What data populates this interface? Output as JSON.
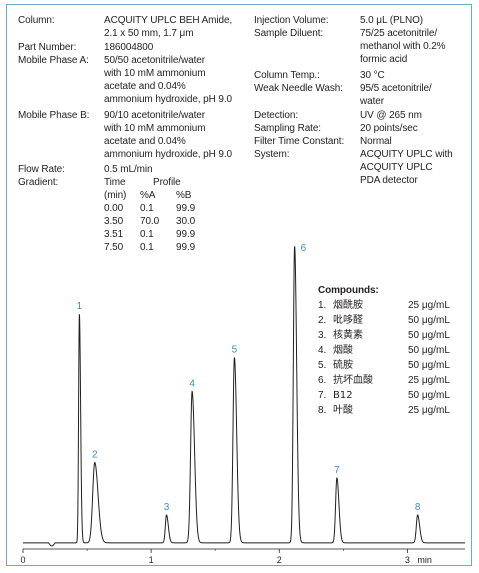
{
  "method": {
    "column_label": "Column:",
    "column_value": [
      "ACQUITY UPLC BEH Amide,",
      "2.1 x 50 mm, 1.7 μm"
    ],
    "part_label": "Part Number:",
    "part_value": "186004800",
    "phase_a_label": "Mobile Phase A:",
    "phase_a_value": [
      "50/50 acetonitrile/water",
      "with 10 mM ammonium",
      "acetate and 0.04%",
      "ammonium hydroxide, pH 9.0"
    ],
    "phase_b_label": "Mobile Phase B:",
    "phase_b_value": [
      "90/10 acetonitrile/water",
      "with 10 mM ammonium",
      "acetate and 0.04%",
      "ammonium hydroxide, pH 9.0"
    ],
    "flow_label": "Flow Rate:",
    "flow_value": "0.5 mL/min",
    "gradient_label": "Gradient:",
    "injection_label": "Injection Volume:",
    "injection_value": "5.0 μL (PLNO)",
    "diluent_label": "Sample Diluent:",
    "diluent_value": [
      "75/25 acetonitrile/",
      "methanol with 0.2%",
      "formic acid"
    ],
    "temp_label": "Column Temp.:",
    "temp_value": "30 °C",
    "wash_label": "Weak Needle Wash:",
    "wash_value": [
      "95/5 acetonitrile/",
      "water"
    ],
    "detection_label": "Detection:",
    "detection_value": "UV @ 265 nm",
    "sampling_label": "Sampling Rate:",
    "sampling_value": "20 points/sec",
    "filter_label": "Filter Time Constant:",
    "filter_value": "Normal",
    "system_label": "System:",
    "system_value": [
      "ACQUITY UPLC with",
      "ACQUITY UPLC",
      "PDA detector"
    ]
  },
  "gradient_table": {
    "header_time": [
      "Time",
      "(min)"
    ],
    "header_profile": "Profile",
    "header_a": "%A",
    "header_b": "%B",
    "rows": [
      [
        "0.00",
        "0.1",
        "99.9"
      ],
      [
        "3.50",
        "70.0",
        "30.0"
      ],
      [
        "3.51",
        "0.1",
        "99.9"
      ],
      [
        "7.50",
        "0.1",
        "99.9"
      ]
    ]
  },
  "compounds": {
    "title": "Compounds:",
    "items": [
      {
        "num": "1.",
        "name": "烟酰胺",
        "conc": "25 μg/mL"
      },
      {
        "num": "2.",
        "name": "吡哆醛",
        "conc": "50 μg/mL"
      },
      {
        "num": "3.",
        "name": "核黄素",
        "conc": "50 μg/mL"
      },
      {
        "num": "4.",
        "name": "烟酸",
        "conc": "50 μg/mL"
      },
      {
        "num": "5.",
        "name": "硫胺",
        "conc": "50 μg/mL"
      },
      {
        "num": "6.",
        "name": "抗坏血酸",
        "conc": "25 μg/mL"
      },
      {
        "num": "7.",
        "name": "B12",
        "conc": "50 μg/mL"
      },
      {
        "num": "8.",
        "name": "叶酸",
        "conc": "25 μg/mL"
      }
    ]
  },
  "chart_data": {
    "type": "line",
    "xlabel": "min",
    "xlim": [
      0,
      3.45
    ],
    "ylim": [
      0,
      1.0
    ],
    "x_ticks": [
      "0",
      "1",
      "2",
      "3"
    ],
    "line_color": "#231f20",
    "label_color": "#3b8dc0",
    "baseline": 0.02,
    "peaks": [
      {
        "label": "1",
        "rt": 0.44,
        "height": 0.74,
        "width": 0.006
      },
      {
        "label": "2",
        "rt": 0.56,
        "height": 0.26,
        "width": 0.016
      },
      {
        "label": "3",
        "rt": 1.12,
        "height": 0.09,
        "width": 0.009
      },
      {
        "label": "4",
        "rt": 1.32,
        "height": 0.49,
        "width": 0.012
      },
      {
        "label": "5",
        "rt": 1.65,
        "height": 0.6,
        "width": 0.011
      },
      {
        "label": "6",
        "rt": 2.12,
        "height": 0.96,
        "width": 0.01
      },
      {
        "label": "7",
        "rt": 2.45,
        "height": 0.21,
        "width": 0.01
      },
      {
        "label": "8",
        "rt": 3.08,
        "height": 0.09,
        "width": 0.01
      }
    ]
  }
}
